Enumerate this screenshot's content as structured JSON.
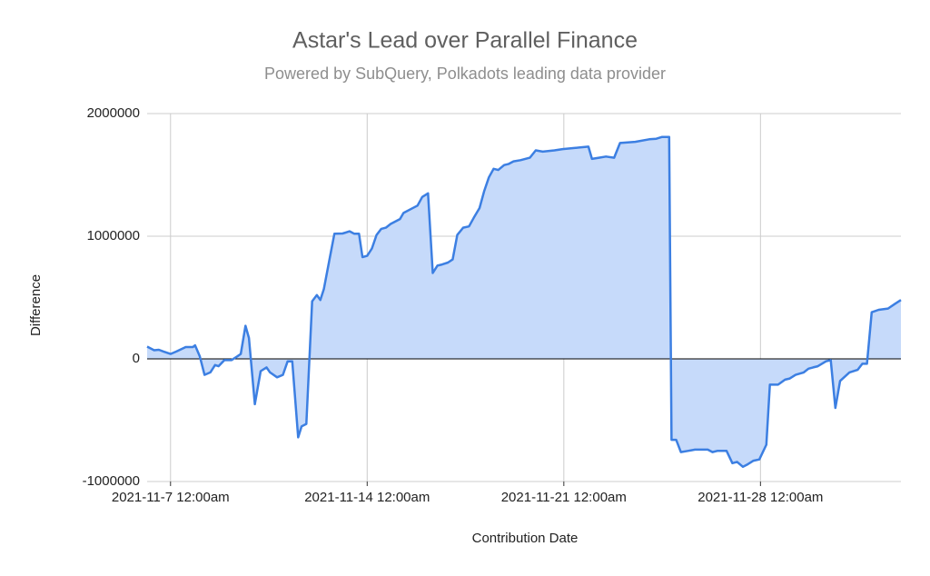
{
  "chart_data": {
    "type": "area",
    "title": "Astar's Lead over Parallel Finance",
    "subtitle": "Powered by SubQuery, Polkadots leading data provider",
    "x_label": "Contribution Date",
    "y_label": "Difference",
    "x": [
      "2021-11-06 04:00",
      "2021-11-06 10:00",
      "2021-11-06 14:00",
      "2021-11-06 18:00",
      "2021-11-07 00:00",
      "2021-11-07 05:00",
      "2021-11-07 13:00",
      "2021-11-07 19:00",
      "2021-11-07 21:00",
      "2021-11-08 01:00",
      "2021-11-08 05:00",
      "2021-11-08 10:00",
      "2021-11-08 14:00",
      "2021-11-08 17:00",
      "2021-11-08 22:00",
      "2021-11-09 04:00",
      "2021-11-09 09:00",
      "2021-11-09 12:00",
      "2021-11-09 16:00",
      "2021-11-09 19:00",
      "2021-11-10 00:00",
      "2021-11-10 05:00",
      "2021-11-10 10:00",
      "2021-11-10 13:00",
      "2021-11-10 19:00",
      "2021-11-11 00:00",
      "2021-11-11 04:00",
      "2021-11-11 08:00",
      "2021-11-11 13:00",
      "2021-11-11 16:00",
      "2021-11-11 20:00",
      "2021-11-12 01:00",
      "2021-11-12 05:00",
      "2021-11-12 08:00",
      "2021-11-12 11:00",
      "2021-11-12 17:00",
      "2021-11-12 20:00",
      "2021-11-13 03:00",
      "2021-11-13 09:00",
      "2021-11-13 13:00",
      "2021-11-13 17:00",
      "2021-11-13 20:00",
      "2021-11-14 00:00",
      "2021-11-14 04:00",
      "2021-11-14 08:00",
      "2021-11-14 12:00",
      "2021-11-14 16:00",
      "2021-11-14 20:00",
      "2021-11-15 04:00",
      "2021-11-15 07:00",
      "2021-11-15 13:00",
      "2021-11-15 19:00",
      "2021-11-15 23:00",
      "2021-11-16 04:00",
      "2021-11-16 08:00",
      "2021-11-16 12:00",
      "2021-11-16 16:00",
      "2021-11-16 21:00",
      "2021-11-17 01:00",
      "2021-11-17 05:00",
      "2021-11-17 10:00",
      "2021-11-17 15:00",
      "2021-11-17 19:00",
      "2021-11-18 00:00",
      "2021-11-18 04:00",
      "2021-11-18 08:00",
      "2021-11-18 12:00",
      "2021-11-18 16:00",
      "2021-11-18 21:00",
      "2021-11-19 01:00",
      "2021-11-19 05:00",
      "2021-11-19 11:00",
      "2021-11-19 19:00",
      "2021-11-20 00:00",
      "2021-11-20 06:00",
      "2021-11-20 16:00",
      "2021-11-20 23:00",
      "2021-11-21 10:00",
      "2021-11-21 21:00",
      "2021-11-22 00:00",
      "2021-11-22 06:00",
      "2021-11-22 12:00",
      "2021-11-22 19:00",
      "2021-11-23 00:00",
      "2021-11-23 13:00",
      "2021-11-24 01:00",
      "2021-11-24 07:00",
      "2021-11-24 12:00",
      "2021-11-24 18:00",
      "2021-11-24 20:00",
      "2021-11-25 00:00",
      "2021-11-25 04:00",
      "2021-11-25 10:00",
      "2021-11-25 16:00",
      "2021-11-25 21:00",
      "2021-11-26 03:00",
      "2021-11-26 07:00",
      "2021-11-26 11:00",
      "2021-11-26 19:00",
      "2021-11-27 00:00",
      "2021-11-27 04:00",
      "2021-11-27 09:00",
      "2021-11-27 13:00",
      "2021-11-27 18:00",
      "2021-11-27 23:00",
      "2021-11-28 05:00",
      "2021-11-28 08:00",
      "2021-11-28 15:00",
      "2021-11-28 21:00",
      "2021-11-29 01:00",
      "2021-11-29 06:00",
      "2021-11-29 13:00",
      "2021-11-29 17:00",
      "2021-11-29 21:00",
      "2021-11-30 01:00",
      "2021-11-30 08:00",
      "2021-11-30 12:00",
      "2021-11-30 16:00",
      "2021-11-30 20:00",
      "2021-12-01 04:00",
      "2021-12-01 11:00",
      "2021-12-01 15:00",
      "2021-12-01 19:00",
      "2021-12-01 23:00",
      "2021-12-02 05:00",
      "2021-12-02 13:00",
      "2021-12-02 19:00",
      "2021-12-03 00:00"
    ],
    "series": [
      {
        "name": "Difference",
        "color": "#3c7fe2",
        "fill": "#c6dafa",
        "values": [
          100000,
          70000,
          74000,
          60000,
          40000,
          60000,
          96000,
          96000,
          110000,
          20000,
          -130000,
          -110000,
          -50000,
          -60000,
          -10000,
          -10000,
          20000,
          40000,
          270000,
          170000,
          -370000,
          -100000,
          -70000,
          -110000,
          -150000,
          -130000,
          -20000,
          -20000,
          -640000,
          -550000,
          -530000,
          470000,
          520000,
          480000,
          570000,
          870000,
          1020000,
          1022000,
          1040000,
          1020000,
          1020000,
          830000,
          840000,
          900000,
          1010000,
          1060000,
          1070000,
          1100000,
          1140000,
          1190000,
          1220000,
          1250000,
          1320000,
          1350000,
          700000,
          760000,
          770000,
          785000,
          810000,
          1010000,
          1070000,
          1080000,
          1150000,
          1230000,
          1370000,
          1480000,
          1550000,
          1540000,
          1580000,
          1590000,
          1610000,
          1620000,
          1640000,
          1700000,
          1690000,
          1700000,
          1710000,
          1720000,
          1730000,
          1630000,
          1640000,
          1650000,
          1640000,
          1760000,
          1770000,
          1790000,
          1795000,
          1810000,
          1810000,
          -660000,
          -660000,
          -760000,
          -750000,
          -740000,
          -740000,
          -740000,
          -760000,
          -750000,
          -750000,
          -850000,
          -840000,
          -880000,
          -860000,
          -830000,
          -820000,
          -700000,
          -210000,
          -210000,
          -170000,
          -160000,
          -130000,
          -110000,
          -80000,
          -70000,
          -60000,
          -20000,
          -10000,
          -400000,
          -180000,
          -110000,
          -90000,
          -40000,
          -40000,
          380000,
          400000,
          410000,
          450000,
          480000
        ]
      }
    ],
    "xlim": [
      "2021-11-06 04:00",
      "2021-12-03 00:00"
    ],
    "xticks": [
      {
        "value": "2021-11-07 00:00",
        "label": "2021-11-7 12:00am"
      },
      {
        "value": "2021-11-14 00:00",
        "label": "2021-11-14 12:00am"
      },
      {
        "value": "2021-11-21 00:00",
        "label": "2021-11-21 12:00am"
      },
      {
        "value": "2021-11-28 00:00",
        "label": "2021-11-28 12:00am"
      }
    ],
    "ylim": [
      -1000000,
      2000000
    ],
    "yticks": [
      -1000000,
      0,
      1000000,
      2000000
    ],
    "grid": true
  }
}
